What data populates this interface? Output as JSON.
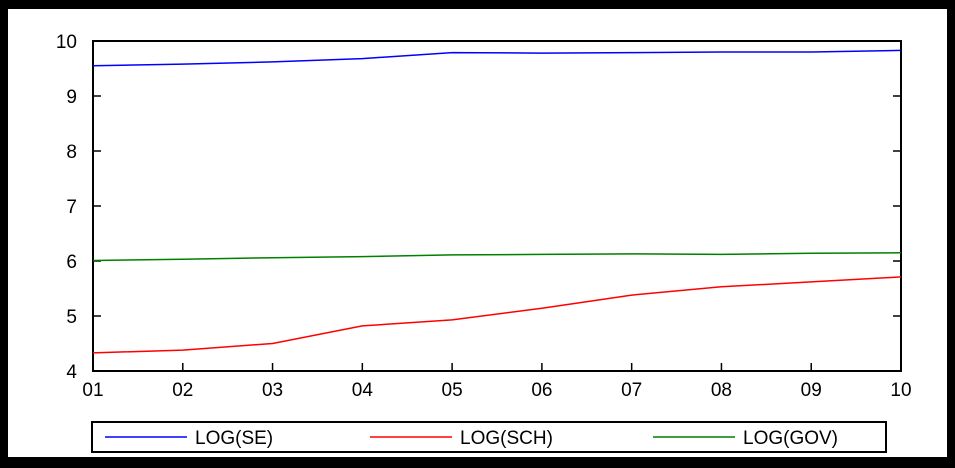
{
  "chart_data": {
    "type": "line",
    "title": "",
    "xlabel": "",
    "ylabel": "",
    "categories": [
      "01",
      "02",
      "03",
      "04",
      "05",
      "06",
      "07",
      "08",
      "09",
      "10"
    ],
    "y_ticks": [
      "4",
      "5",
      "6",
      "7",
      "8",
      "9",
      "10"
    ],
    "ylim": [
      4,
      10
    ],
    "grid": false,
    "legend_position": "bottom",
    "series": [
      {
        "name": "LOG(SE)",
        "color": "#0000ff",
        "values": [
          9.55,
          9.58,
          9.62,
          9.68,
          9.79,
          9.78,
          9.79,
          9.8,
          9.8,
          9.83
        ]
      },
      {
        "name": "LOG(SCH)",
        "color": "#ff0000",
        "values": [
          4.33,
          4.38,
          4.5,
          4.82,
          4.93,
          5.14,
          5.38,
          5.53,
          5.62,
          5.71
        ]
      },
      {
        "name": "LOG(GOV)",
        "color": "#008000",
        "values": [
          6.01,
          6.03,
          6.06,
          6.08,
          6.11,
          6.12,
          6.13,
          6.12,
          6.14,
          6.15
        ]
      }
    ]
  }
}
